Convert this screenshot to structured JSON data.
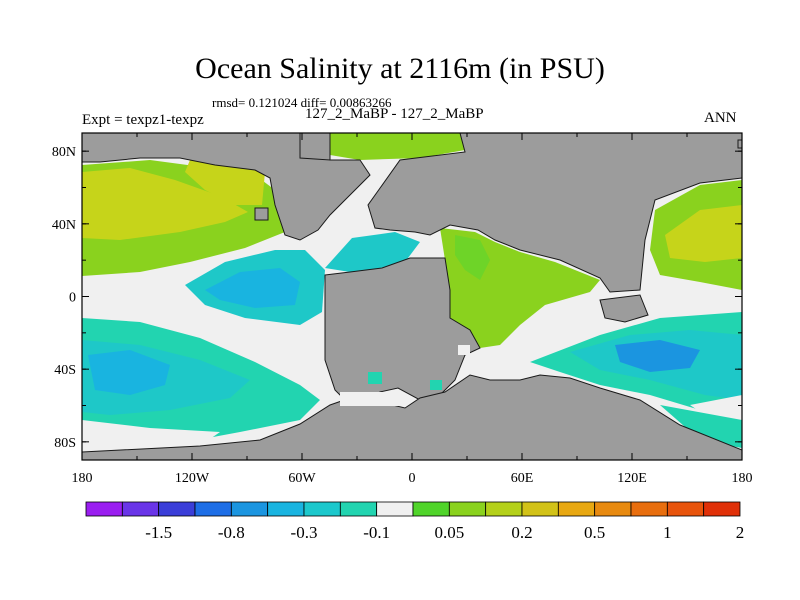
{
  "title": "Ocean Salinity at 2116m (in PSU)",
  "stats": "rmsd= 0.121024 diff= 0.00863266",
  "expt_label": "Expt = texpz1-texpz",
  "period_label": "127_2_MaBP - 127_2_MaBP",
  "season_label": "ANN",
  "lat_ticks": [
    "80N",
    "40N",
    "0",
    "40S",
    "80S"
  ],
  "lon_ticks": [
    "180",
    "120W",
    "60W",
    "0",
    "60E",
    "120E",
    "180"
  ],
  "colorbar": {
    "colors": [
      "#9a1ef0",
      "#6a35e8",
      "#3b3ed8",
      "#1e6ee6",
      "#1b95e0",
      "#19b4e0",
      "#1cc8cc",
      "#22d4b0",
      "#f0f0f0",
      "#50d42a",
      "#8ad21e",
      "#b4d01a",
      "#d2c218",
      "#e8a812",
      "#e88a10",
      "#e86e0e",
      "#e8540c",
      "#e03008"
    ],
    "labels": [
      "-1.5",
      "-0.8",
      "-0.3",
      "-0.1",
      "0.05",
      "0.2",
      "0.5",
      "1",
      "2"
    ]
  },
  "colors": {
    "land": "#9c9c9c",
    "coast": "#1a1a1a",
    "near_zero": "#f0f0f0",
    "green": "#8ad21e",
    "yellow_green": "#c6d41a",
    "cyan": "#1ec8c8",
    "teal": "#22d4b0",
    "blue": "#19b4e0",
    "mid_blue": "#1b95e0",
    "light_green": "#6ed428"
  }
}
